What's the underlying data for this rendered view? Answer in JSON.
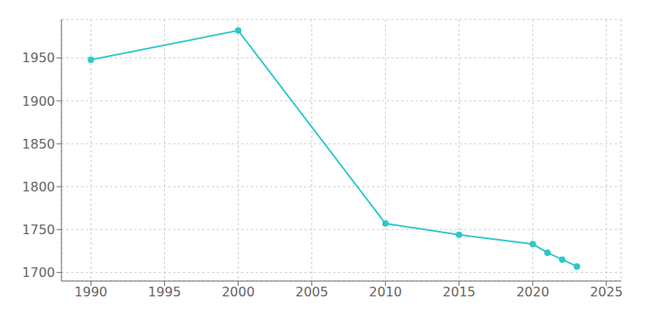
{
  "chart_data": {
    "type": "line",
    "x": [
      1990,
      2000,
      2010,
      2015,
      2020,
      2021,
      2022,
      2023
    ],
    "values": [
      1948,
      1982,
      1757,
      1744,
      1733,
      1723,
      1715,
      1707
    ],
    "color": "#2ec8c8",
    "marker": "circle",
    "xlim": [
      1988,
      2026
    ],
    "ylim": [
      1690,
      1995
    ],
    "xticks": [
      1990,
      1995,
      2000,
      2005,
      2010,
      2015,
      2020,
      2025
    ],
    "yticks": [
      1700,
      1750,
      1800,
      1850,
      1900,
      1950
    ],
    "grid": true
  }
}
